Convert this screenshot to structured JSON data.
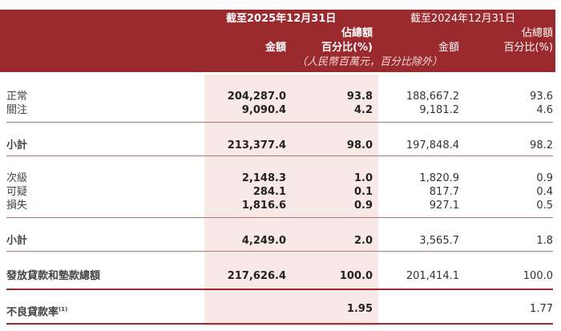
{
  "header": {
    "period_2025": "截至2025年12月31日",
    "period_2024": "截至2024年12月31日",
    "pct_line1": "佔總額",
    "pct_line2": "百分比(%)",
    "amount": "金額",
    "unit_note": "（人民幣百萬元，百分比除外）"
  },
  "rows": [
    {
      "label": "正常",
      "a2025": "204,287.0",
      "p2025": "93.8",
      "a2024": "188,667.2",
      "p2024": "93.6"
    },
    {
      "label": "關注",
      "a2025": "9,090.4",
      "p2025": "4.2",
      "a2024": "9,181.2",
      "p2024": "4.6"
    },
    {
      "label": "小計",
      "a2025": "213,377.4",
      "p2025": "98.0",
      "a2024": "197,848.4",
      "p2024": "98.2"
    },
    {
      "label": "次級",
      "a2025": "2,148.3",
      "p2025": "1.0",
      "a2024": "1,820.9",
      "p2024": "0.9"
    },
    {
      "label": "可疑",
      "a2025": "284.1",
      "p2025": "0.1",
      "a2024": "817.7",
      "p2024": "0.4"
    },
    {
      "label": "損失",
      "a2025": "1,816.6",
      "p2025": "0.9",
      "a2024": "927.1",
      "p2024": "0.5"
    },
    {
      "label": "小計",
      "a2025": "4,249.0",
      "p2025": "2.0",
      "a2024": "3,565.7",
      "p2024": "1.8"
    },
    {
      "label": "發放貸款和墊款總額",
      "a2025": "217,626.4",
      "p2025": "100.0",
      "a2024": "201,414.1",
      "p2024": "100.0"
    },
    {
      "label": "不良貸款率",
      "footnote": "(1)",
      "p2025": "1.95",
      "p2024": "1.77"
    }
  ],
  "colors": {
    "header_bg": "#9b2a2e",
    "highlight_column": "#f8e8e6"
  }
}
